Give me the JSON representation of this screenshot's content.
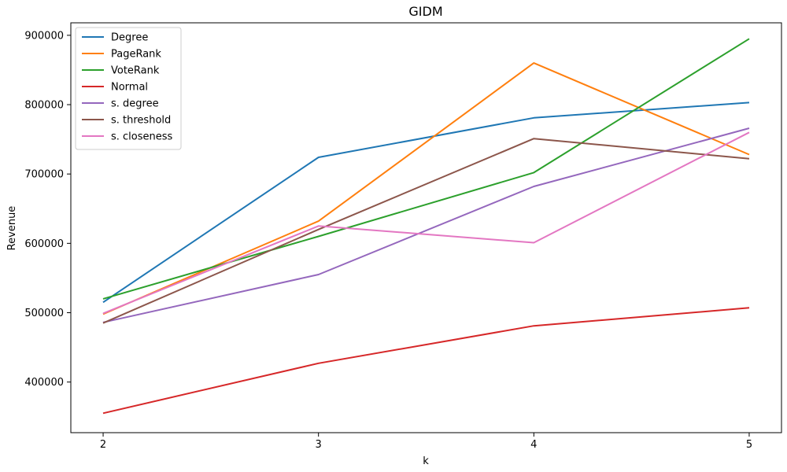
{
  "chart_data": {
    "type": "line",
    "title": "GIDM",
    "xlabel": "k",
    "ylabel": "Revenue",
    "x": [
      2,
      3,
      4,
      5
    ],
    "xticks": [
      "2",
      "3",
      "4",
      "5"
    ],
    "yticks": [
      400000,
      500000,
      600000,
      700000,
      800000,
      900000
    ],
    "ytick_labels": [
      "400000",
      "500000",
      "600000",
      "700000",
      "800000",
      "900000"
    ],
    "xlim": [
      1.85,
      5.15
    ],
    "ylim": [
      327000,
      918000
    ],
    "grid": false,
    "legend_position": "upper-left",
    "series": [
      {
        "name": "Degree",
        "color": "#1f77b4",
        "values": [
          515000,
          724000,
          781000,
          803000
        ]
      },
      {
        "name": "PageRank",
        "color": "#ff7f0e",
        "values": [
          498000,
          632000,
          860000,
          728000
        ]
      },
      {
        "name": "VoteRank",
        "color": "#2ca02c",
        "values": [
          520000,
          610000,
          702000,
          895000
        ]
      },
      {
        "name": "Normal",
        "color": "#d62728",
        "values": [
          355000,
          427000,
          481000,
          507000
        ]
      },
      {
        "name": "s. degree",
        "color": "#9467bd",
        "values": [
          486000,
          555000,
          682000,
          766000
        ]
      },
      {
        "name": "s. threshold",
        "color": "#8c564b",
        "values": [
          485000,
          620000,
          751000,
          722000
        ]
      },
      {
        "name": "s. closeness",
        "color": "#e377c2",
        "values": [
          499000,
          625000,
          601000,
          760000
        ]
      }
    ]
  }
}
